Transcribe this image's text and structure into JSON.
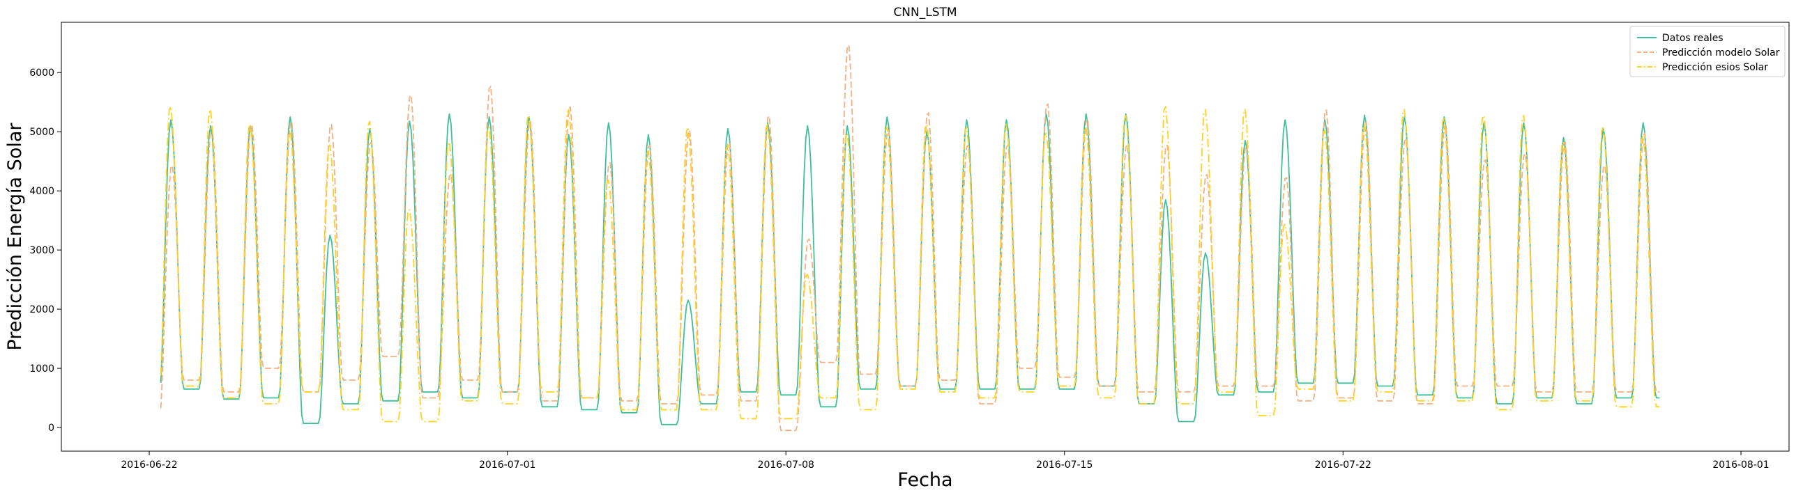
{
  "chart_data": {
    "type": "line",
    "title": "CNN_LSTM",
    "xlabel": "Fecha",
    "ylabel": "Predicción Energía Solar",
    "x_unit": "date",
    "xlim": [
      "2016-06-19T19:00",
      "2016-08-02T05:00"
    ],
    "ylim": [
      -400,
      6850
    ],
    "x_ticks": [
      "2016-06-22",
      "2016-07-01",
      "2016-07-08",
      "2016-07-15",
      "2016-07-22",
      "2016-08-01"
    ],
    "x_tick_labels": [
      "2016-06-22",
      "2016-07-01",
      "2016-07-08",
      "2016-07-15",
      "2016-07-22",
      "2016-08-01"
    ],
    "y_ticks": [
      0,
      1000,
      2000,
      3000,
      4000,
      5000,
      6000
    ],
    "grid": false,
    "legend_position": "top-right",
    "x_start": "2016-06-22T07:00",
    "x_end": "2016-07-29T23:00",
    "daily_series": {
      "dates": [
        "2016-06-22",
        "2016-06-23",
        "2016-06-24",
        "2016-06-25",
        "2016-06-26",
        "2016-06-27",
        "2016-06-28",
        "2016-06-29",
        "2016-06-30",
        "2016-07-01",
        "2016-07-02",
        "2016-07-03",
        "2016-07-04",
        "2016-07-05",
        "2016-07-06",
        "2016-07-07",
        "2016-07-08",
        "2016-07-09",
        "2016-07-10",
        "2016-07-11",
        "2016-07-12",
        "2016-07-13",
        "2016-07-14",
        "2016-07-15",
        "2016-07-16",
        "2016-07-17",
        "2016-07-18",
        "2016-07-19",
        "2016-07-20",
        "2016-07-21",
        "2016-07-22",
        "2016-07-23",
        "2016-07-24",
        "2016-07-25",
        "2016-07-26",
        "2016-07-27",
        "2016-07-28",
        "2016-07-29"
      ],
      "peak_hour": [
        "13:00",
        "13:00",
        "13:00",
        "13:00",
        "13:00",
        "13:00",
        "13:00",
        "13:00",
        "13:00",
        "13:00",
        "13:00",
        "13:00",
        "13:00",
        "13:00",
        "13:00",
        "13:00",
        "13:00",
        "13:00",
        "13:00",
        "13:00",
        "13:00",
        "13:00",
        "13:00",
        "13:00",
        "13:00",
        "13:00",
        "13:00",
        "13:00",
        "13:00",
        "13:00",
        "13:00",
        "13:00",
        "13:00",
        "13:00",
        "13:00",
        "13:00",
        "13:00",
        "13:00"
      ]
    },
    "series": [
      {
        "name": "Datos reales",
        "color": "#3fbf9a",
        "dash": "solid",
        "daily_peak": [
          5200,
          5100,
          5100,
          5250,
          3250,
          5050,
          5180,
          5300,
          5250,
          5250,
          4950,
          5150,
          4950,
          2150,
          5050,
          5150,
          5100,
          5100,
          5250,
          5000,
          5200,
          5200,
          5300,
          5300,
          5300,
          3850,
          2950,
          4850,
          5200,
          5200,
          5280,
          5250,
          5250,
          5150,
          5150,
          4900,
          5050,
          5150
        ],
        "daily_night": [
          600,
          650,
          480,
          500,
          70,
          400,
          450,
          600,
          500,
          600,
          350,
          300,
          250,
          50,
          400,
          600,
          550,
          350,
          650,
          700,
          650,
          650,
          650,
          650,
          700,
          400,
          100,
          550,
          600,
          750,
          750,
          700,
          550,
          500,
          400,
          500,
          400,
          500
        ]
      },
      {
        "name": "Predicción modelo Solar",
        "color": "#f4b183",
        "dash": "dashed",
        "daily_peak": [
          4450,
          5100,
          5150,
          5200,
          5150,
          4850,
          5650,
          4300,
          5800,
          5200,
          5450,
          4500,
          4800,
          5050,
          4850,
          5300,
          3200,
          6500,
          5050,
          5350,
          4800,
          4800,
          5500,
          5250,
          4800,
          4800,
          4300,
          4800,
          4250,
          5400,
          5200,
          4900,
          5150,
          4550,
          4650,
          4850,
          4450,
          5000
        ],
        "daily_night": [
          200,
          800,
          600,
          1000,
          600,
          800,
          1200,
          500,
          800,
          600,
          450,
          500,
          450,
          400,
          550,
          450,
          -50,
          1100,
          900,
          700,
          800,
          400,
          1000,
          850,
          700,
          600,
          600,
          700,
          700,
          450,
          500,
          450,
          400,
          700,
          700,
          600,
          600,
          600
        ]
      },
      {
        "name": "Predicción esios Solar",
        "color": "#ffd21f",
        "dash": "dashdot",
        "daily_peak": [
          5450,
          5400,
          5150,
          5050,
          4800,
          5200,
          3700,
          4850,
          5100,
          5300,
          5400,
          4200,
          4700,
          5100,
          4800,
          5150,
          2600,
          5000,
          5100,
          5150,
          5100,
          5150,
          5000,
          5100,
          5300,
          5450,
          5400,
          5400,
          3450,
          5050,
          5150,
          5400,
          5250,
          5300,
          5300,
          4850,
          5100,
          4950
        ],
        "daily_night": [
          700,
          700,
          500,
          400,
          600,
          300,
          100,
          100,
          450,
          400,
          600,
          500,
          300,
          300,
          300,
          150,
          150,
          500,
          300,
          650,
          600,
          500,
          600,
          700,
          500,
          400,
          400,
          600,
          200,
          650,
          450,
          600,
          450,
          450,
          300,
          450,
          450,
          350
        ]
      }
    ]
  }
}
